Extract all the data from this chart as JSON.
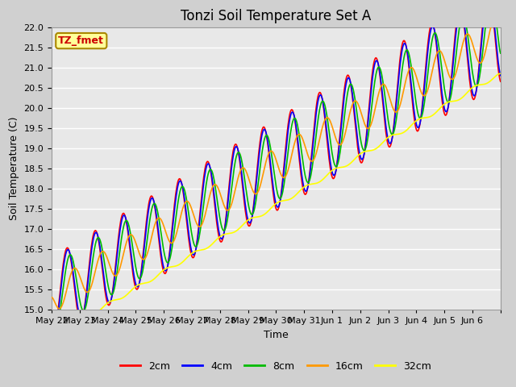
{
  "title": "Tonzi Soil Temperature Set A",
  "xlabel": "Time",
  "ylabel": "Soil Temperature (C)",
  "ylim": [
    15.0,
    22.0
  ],
  "yticks": [
    15.0,
    15.5,
    16.0,
    16.5,
    17.0,
    17.5,
    18.0,
    18.5,
    19.0,
    19.5,
    20.0,
    20.5,
    21.0,
    21.5,
    22.0
  ],
  "fig_bg_color": "#d0d0d0",
  "plot_bg_color": "#e8e8e8",
  "grid_color": "#ffffff",
  "series_colors": {
    "2cm": "#ff0000",
    "4cm": "#0000ff",
    "8cm": "#00bb00",
    "16cm": "#ff9900",
    "32cm": "#ffff00"
  },
  "series_linewidth": 1.2,
  "legend_labels": [
    "2cm",
    "4cm",
    "8cm",
    "16cm",
    "32cm"
  ],
  "annotation_text": "TZ_fmet",
  "annotation_bg": "#ffff99",
  "annotation_border": "#aa8800",
  "annotation_text_color": "#cc0000",
  "annotation_fontsize": 9,
  "title_fontsize": 12,
  "label_fontsize": 9,
  "tick_fontsize": 8
}
